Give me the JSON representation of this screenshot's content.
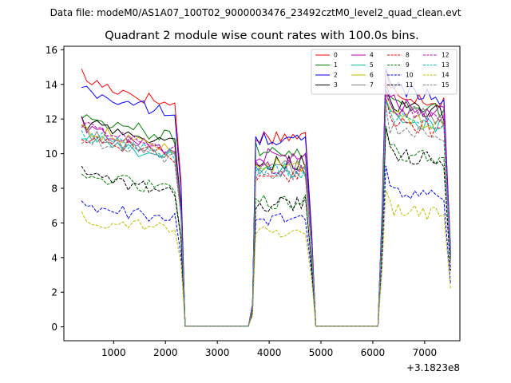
{
  "header": {
    "data_file": "Data file: modeM0/AS1A07_100T02_9000003476_23492cztM0_level2_quad_clean.evt"
  },
  "chart_data": {
    "type": "line",
    "title": "Quadrant 2 module wise count rates with 100.0s bins.",
    "xlabel": "",
    "ylabel": "",
    "x_offset_label": "+3.1823e8",
    "xlim": [
      40,
      7680
    ],
    "ylim": [
      -0.8,
      16.2
    ],
    "x_ticks": [
      1000,
      2000,
      3000,
      4000,
      5000,
      6000,
      7000
    ],
    "x_tick_labels": [
      "1000",
      "2000",
      "3000",
      "4000",
      "5000",
      "6000",
      "7000"
    ],
    "y_ticks": [
      0,
      2,
      4,
      6,
      8,
      10,
      12,
      14,
      16
    ],
    "y_tick_labels": [
      "0",
      "2",
      "4",
      "6",
      "8",
      "10",
      "12",
      "14",
      "16"
    ],
    "segments": [
      {
        "start": 380,
        "end": 2250,
        "step": 100
      },
      {
        "start": 3740,
        "end": 4760,
        "step": 80
      },
      {
        "start": 6250,
        "end": 7400,
        "step": 80
      }
    ],
    "gap_points": {
      "gap1": [
        2380,
        2500,
        3000,
        3500,
        3600
      ],
      "gap2": [
        4900,
        5500,
        6000,
        6100
      ]
    },
    "legend": {
      "position": "top-right",
      "columns": 4
    },
    "series": [
      {
        "name": "0",
        "color": "#ff0000",
        "dash": "solid",
        "levels": [
          13.5,
          11.0,
          13.3
        ],
        "peak": 14.9
      },
      {
        "name": "1",
        "color": "#008000",
        "dash": "solid",
        "levels": [
          11.5,
          10.2,
          12.8
        ],
        "peak": 14.0
      },
      {
        "name": "2",
        "color": "#0000ff",
        "dash": "solid",
        "levels": [
          12.9,
          10.8,
          13.6
        ],
        "peak": 14.9
      },
      {
        "name": "3",
        "color": "#000000",
        "dash": "solid",
        "levels": [
          11.1,
          9.5,
          12.6
        ],
        "peak": 13.7
      },
      {
        "name": "4",
        "color": "#bf00bf",
        "dash": "solid",
        "levels": [
          10.8,
          9.9,
          12.7
        ],
        "peak": 14.2
      },
      {
        "name": "5",
        "color": "#00bfbf",
        "dash": "solid",
        "levels": [
          10.3,
          9.0,
          11.9
        ],
        "peak": 13.0
      },
      {
        "name": "6",
        "color": "#bfbf00",
        "dash": "solid",
        "levels": [
          10.8,
          9.3,
          12.0
        ],
        "peak": 13.2
      },
      {
        "name": "7",
        "color": "#808080",
        "dash": "solid",
        "levels": [
          10.5,
          9.2,
          12.3
        ],
        "peak": 13.4
      },
      {
        "name": "8",
        "color": "#ff0000",
        "dash": "dashed",
        "levels": [
          10.4,
          8.8,
          11.6
        ],
        "peak": 13.2
      },
      {
        "name": "9",
        "color": "#008000",
        "dash": "dashed",
        "levels": [
          8.3,
          7.2,
          9.9
        ],
        "peak": 11.6
      },
      {
        "name": "10",
        "color": "#0000ff",
        "dash": "dashed",
        "levels": [
          6.6,
          6.2,
          7.6
        ],
        "peak": 9.3
      },
      {
        "name": "11",
        "color": "#000000",
        "dash": "dashed",
        "levels": [
          8.2,
          7.1,
          9.8
        ],
        "peak": 11.5
      },
      {
        "name": "12",
        "color": "#bf00bf",
        "dash": "dashed",
        "levels": [
          10.9,
          9.2,
          12.2
        ],
        "peak": 13.6
      },
      {
        "name": "13",
        "color": "#00bfbf",
        "dash": "dashed",
        "levels": [
          10.5,
          9.0,
          11.8
        ],
        "peak": 13.1
      },
      {
        "name": "14",
        "color": "#bfbf00",
        "dash": "dashed",
        "levels": [
          5.9,
          5.5,
          6.7
        ],
        "peak": 7.9
      },
      {
        "name": "15",
        "color": "#808080",
        "dash": "dashed",
        "levels": [
          10.2,
          8.9,
          11.3
        ],
        "peak": 12.8
      }
    ]
  }
}
